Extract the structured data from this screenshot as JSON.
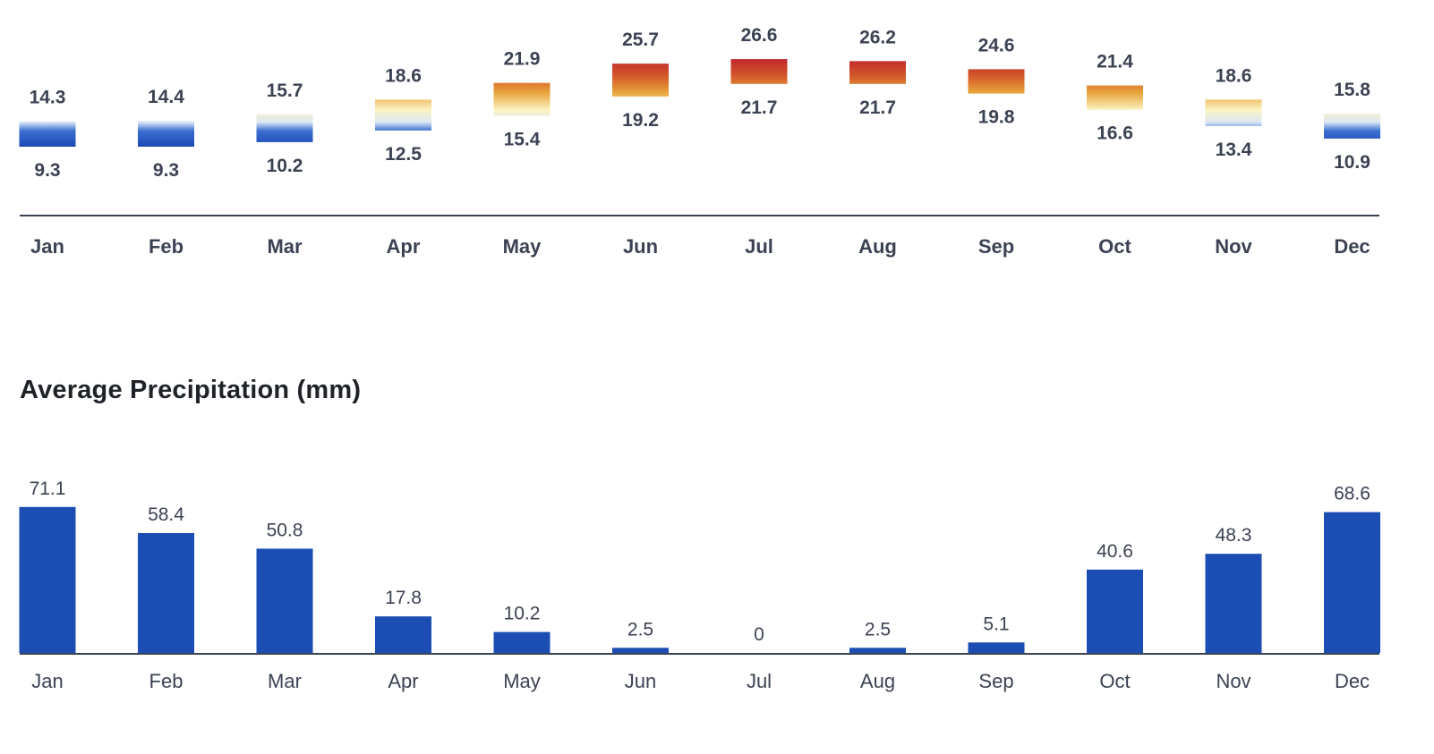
{
  "chart_data": [
    {
      "type": "bar",
      "subtype": "range",
      "title": "",
      "unit": "°C",
      "categories": [
        "Jan",
        "Feb",
        "Mar",
        "Apr",
        "May",
        "Jun",
        "Jul",
        "Aug",
        "Sep",
        "Oct",
        "Nov",
        "Dec"
      ],
      "series": [
        {
          "name": "",
          "role": "high",
          "values": [
            14.3,
            14.4,
            15.7,
            18.6,
            21.9,
            25.7,
            26.6,
            26.2,
            24.6,
            21.4,
            18.6,
            15.8
          ]
        },
        {
          "name": "",
          "role": "low",
          "values": [
            9.3,
            9.3,
            10.2,
            12.5,
            15.4,
            19.2,
            21.7,
            21.7,
            19.8,
            16.6,
            13.4,
            10.9
          ]
        }
      ],
      "color_scale": [
        "#1b47b6",
        "#fbf3c0",
        "#e8a33a",
        "#c0282a"
      ],
      "axis_line_color": "#3b4253"
    },
    {
      "type": "bar",
      "title": "Average Precipitation (mm)",
      "categories": [
        "Jan",
        "Feb",
        "Mar",
        "Apr",
        "May",
        "Jun",
        "Jul",
        "Aug",
        "Sep",
        "Oct",
        "Nov",
        "Dec"
      ],
      "values": [
        71.1,
        58.4,
        50.8,
        17.8,
        10.2,
        2.5,
        0,
        2.5,
        5.1,
        40.6,
        48.3,
        68.6
      ],
      "value_labels": [
        "71.1",
        "58.4",
        "50.8",
        "17.8",
        "10.2",
        "2.5",
        "0",
        "2.5",
        "5.1",
        "40.6",
        "48.3",
        "68.6"
      ],
      "bar_color": "#1b4db3",
      "axis_line_color": "#3b4253"
    }
  ]
}
